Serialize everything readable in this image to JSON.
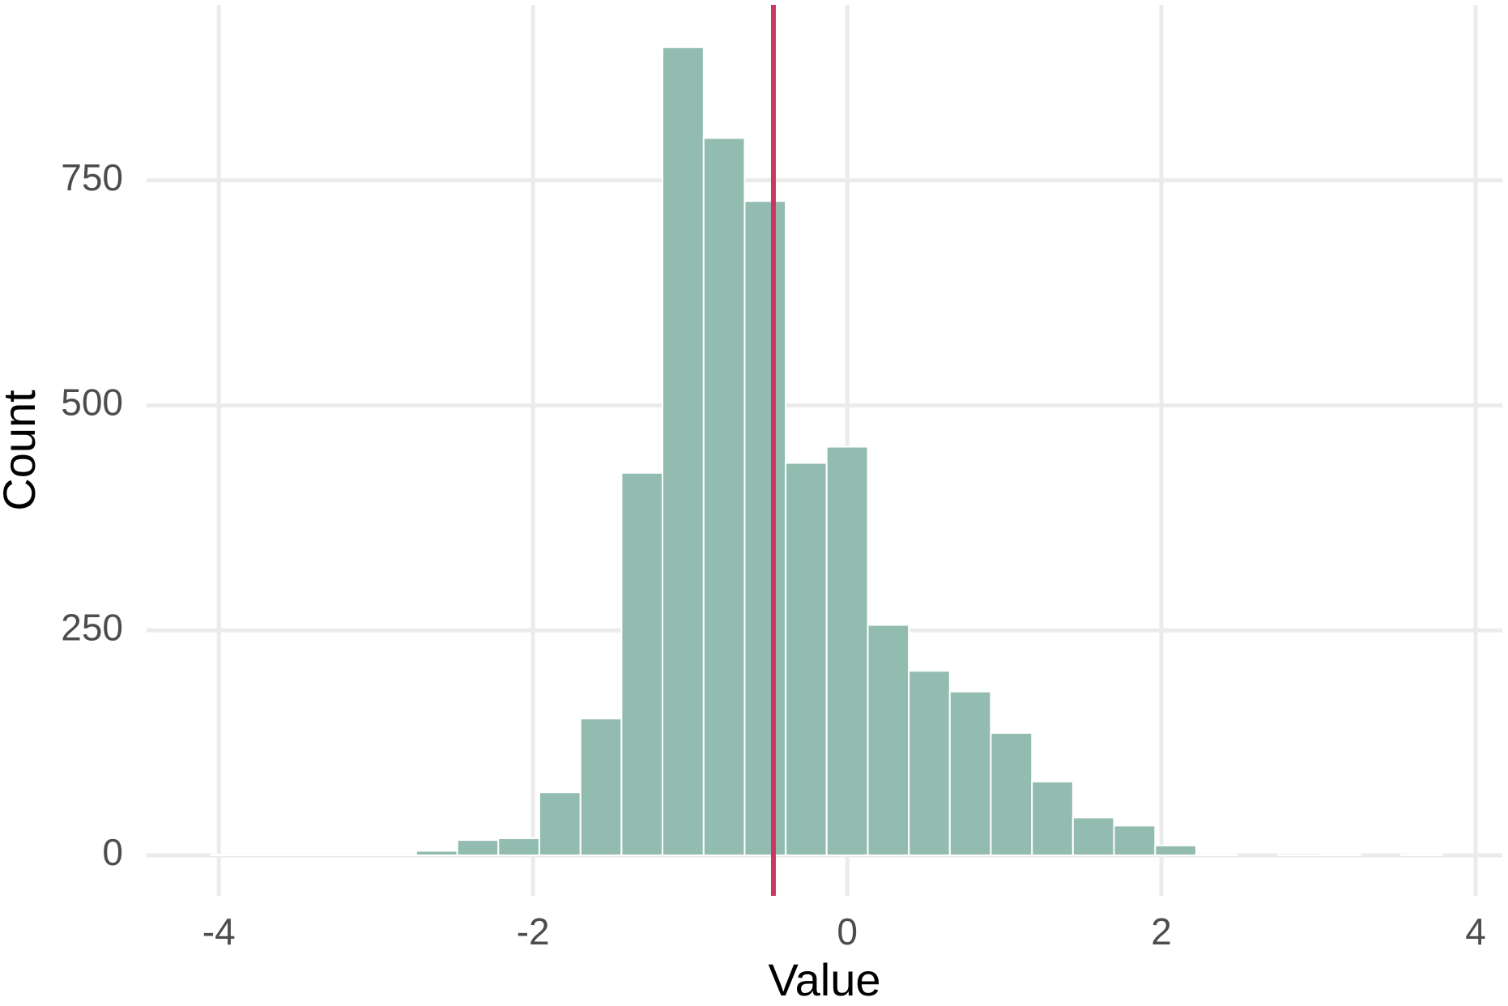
{
  "chart_data": {
    "type": "histogram",
    "x_label": "Value",
    "y_label": "Count",
    "bins": [
      -4.05,
      -3.789,
      -3.527,
      -3.266,
      -3.005,
      -2.744,
      -2.482,
      -2.221,
      -1.96,
      -1.698,
      -1.437,
      -1.176,
      -0.914,
      -0.653,
      -0.392,
      -0.131,
      0.131,
      0.392,
      0.653,
      0.914,
      1.176,
      1.437,
      1.698,
      1.96,
      2.221,
      2.482,
      2.744,
      3.005,
      3.266,
      3.527,
      3.789
    ],
    "values": [
      1,
      1,
      1,
      1,
      1,
      5,
      17,
      19,
      70,
      152,
      425,
      898,
      797,
      727,
      436,
      454,
      256,
      205,
      182,
      136,
      82,
      42,
      33,
      11,
      1,
      0,
      2,
      1,
      0,
      1
    ],
    "color": "#93bcb0",
    "vline": -0.47,
    "vline_color": "#c8385f",
    "xlim": [
      -4.46,
      4.17
    ],
    "xticks": [
      -4,
      -2,
      0,
      2,
      4
    ],
    "ylim": [
      -45,
      945
    ],
    "yticks": [
      0,
      250,
      500,
      750
    ],
    "grid": true
  }
}
